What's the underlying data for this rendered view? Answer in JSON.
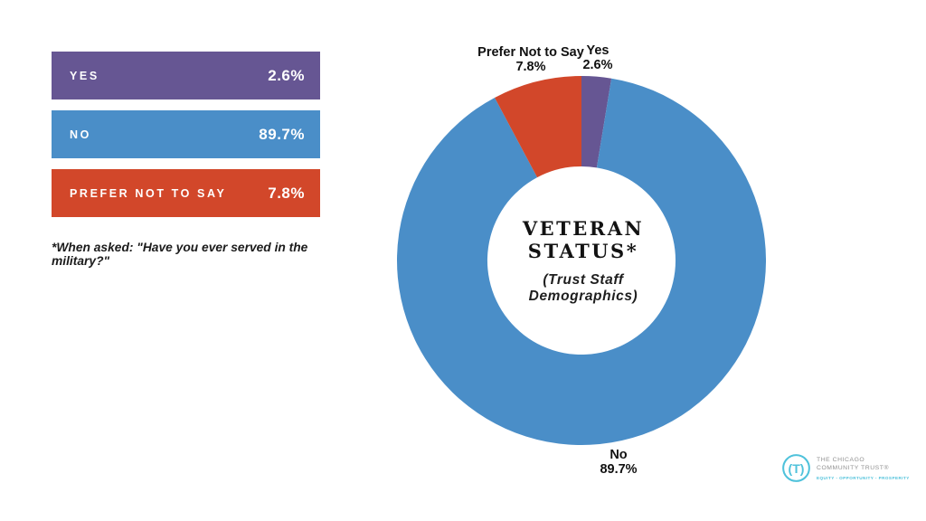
{
  "page": {
    "background": "#ffffff"
  },
  "legend": {
    "items": [
      {
        "id": "yes",
        "label": "YES",
        "value_label": "2.6%",
        "color": "#665693"
      },
      {
        "id": "no",
        "label": "NO",
        "value_label": "89.7%",
        "color": "#4A8EC8"
      },
      {
        "id": "prefer-not-to-say",
        "label": "PREFER NOT TO SAY",
        "value_label": "7.8%",
        "color": "#D2472A"
      }
    ]
  },
  "footnote": "*When asked: \"Have you ever served in the military?\"",
  "chart_data": {
    "type": "pie",
    "subtype": "donut",
    "title": "VETERAN STATUS*",
    "subtitle": "(Trust Staff Demographics)",
    "categories": [
      "Yes",
      "No",
      "Prefer Not to Say"
    ],
    "values": [
      2.6,
      89.7,
      7.8
    ],
    "unit": "%",
    "start_angle_deg": 0,
    "direction": "clockwise",
    "inner_radius_ratio": 0.51,
    "legend_position": "left",
    "slices": [
      {
        "id": "yes",
        "label": "Yes",
        "value": 2.6,
        "pct_label": "2.6%",
        "color": "#665693"
      },
      {
        "id": "no",
        "label": "No",
        "value": 89.7,
        "pct_label": "89.7%",
        "color": "#4A8EC8"
      },
      {
        "id": "prefer-not-to-say",
        "label": "Prefer Not to Say",
        "value": 7.8,
        "pct_label": "7.8%",
        "color": "#D2472A"
      }
    ]
  },
  "donut_center": {
    "title_line1": "VETERAN",
    "title_line2": "STATUS*",
    "subtitle_line1": "(Trust Staff",
    "subtitle_line2": "Demographics)"
  },
  "logo": {
    "mark": "(T)",
    "line1": "THE CHICAGO",
    "line2": "COMMUNITY TRUST®",
    "tagline": "EQUITY - OPPORTUNITY - PROSPERITY",
    "accent_color": "#4FC2DB",
    "text_color": "#919191"
  }
}
